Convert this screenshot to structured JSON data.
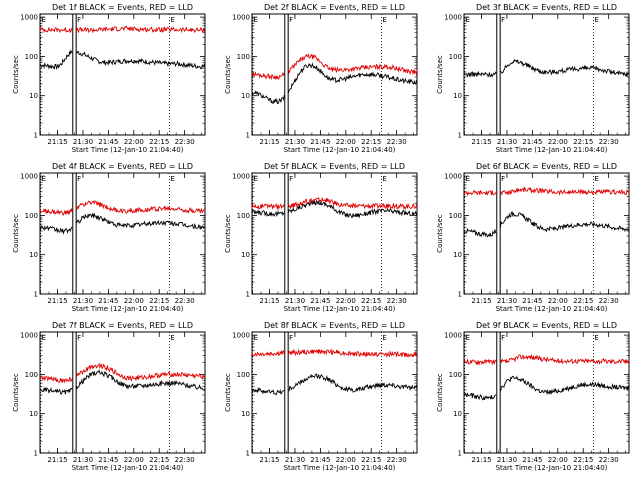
{
  "chart_data": [
    {
      "type": "line",
      "title": "Det 1f BLACK = Events, RED = LLD",
      "xlabel": "Start Time (12-Jan-10 21:04:40)",
      "ylabel": "Counts/sec",
      "xticks": [
        "21:15",
        "21:30",
        "21:45",
        "22:00",
        "22:15",
        "22:30"
      ],
      "yticks": [
        "1",
        "10",
        "100",
        "1000"
      ],
      "yscale": "log",
      "xlim": [
        "21:04:40",
        "22:42:00"
      ],
      "ylim": [
        1,
        1200
      ],
      "markers": [
        {
          "label": "E",
          "time": "21:05"
        },
        {
          "label": "F",
          "time": "21:26"
        },
        {
          "label": "E",
          "time": "22:21"
        }
      ],
      "events": [
        {
          "label": "S",
          "time": "21:24"
        },
        {
          "label": "E",
          "time": "21:26"
        }
      ],
      "series": [
        {
          "name": "BLACK = Events",
          "color": "#000000",
          "baseline": [
            [
              0,
              60
            ],
            [
              0.1,
              55
            ],
            [
              0.2,
              130
            ],
            [
              0.4,
              70
            ],
            [
              0.55,
              78
            ],
            [
              0.8,
              65
            ],
            [
              1,
              55
            ]
          ]
        },
        {
          "name": "RED = LLD",
          "color": "#e00000",
          "baseline": [
            [
              0,
              480
            ],
            [
              0.3,
              470
            ],
            [
              0.5,
              510
            ],
            [
              0.7,
              480
            ],
            [
              1,
              470
            ]
          ]
        }
      ]
    },
    {
      "type": "line",
      "title": "Det 2f BLACK = Events, RED = LLD",
      "xlabel": "Start Time (12-Jan-10 21:04:40)",
      "ylabel": "Counts/sec",
      "xticks": [
        "21:15",
        "21:30",
        "21:45",
        "22:00",
        "22:15",
        "22:30"
      ],
      "yticks": [
        "1",
        "10",
        "100",
        "1000"
      ],
      "yscale": "log",
      "xlim": [
        "21:04:40",
        "22:42:00"
      ],
      "ylim": [
        1,
        1200
      ],
      "markers": [
        {
          "label": "E",
          "time": "21:05"
        },
        {
          "label": "F",
          "time": "21:26"
        },
        {
          "label": "E",
          "time": "22:21"
        }
      ],
      "events": [
        {
          "label": "S",
          "time": "21:24"
        },
        {
          "label": "E",
          "time": "21:26"
        }
      ],
      "series": [
        {
          "name": "BLACK = Events",
          "color": "#000000",
          "baseline": [
            [
              0,
              12
            ],
            [
              0.15,
              7
            ],
            [
              0.35,
              60
            ],
            [
              0.5,
              25
            ],
            [
              0.7,
              35
            ],
            [
              1,
              22
            ]
          ]
        },
        {
          "name": "RED = LLD",
          "color": "#e00000",
          "baseline": [
            [
              0,
              35
            ],
            [
              0.15,
              30
            ],
            [
              0.35,
              100
            ],
            [
              0.5,
              45
            ],
            [
              0.8,
              55
            ],
            [
              1,
              40
            ]
          ]
        }
      ]
    },
    {
      "type": "line",
      "title": "Det 3f BLACK = Events, RED = LLD",
      "xlabel": "Start Time (12-Jan-10 21:04:40)",
      "ylabel": "Counts/sec",
      "xticks": [
        "21:15",
        "21:30",
        "21:45",
        "22:00",
        "22:15",
        "22:30"
      ],
      "yticks": [
        "1",
        "10",
        "100",
        "1000"
      ],
      "yscale": "log",
      "xlim": [
        "21:04:40",
        "22:42:00"
      ],
      "ylim": [
        1,
        1200
      ],
      "markers": [
        {
          "label": "E",
          "time": "21:05"
        },
        {
          "label": "F",
          "time": "21:26"
        },
        {
          "label": "E",
          "time": "22:21"
        }
      ],
      "events": [
        {
          "label": "S",
          "time": "21:24"
        },
        {
          "label": "E",
          "time": "21:26"
        }
      ],
      "series": [
        {
          "name": "BLACK = Events",
          "color": "#000000",
          "baseline": [
            [
              0,
              35
            ],
            [
              0.2,
              35
            ],
            [
              0.3,
              75
            ],
            [
              0.5,
              40
            ],
            [
              0.75,
              50
            ],
            [
              1,
              35
            ]
          ]
        }
      ]
    },
    {
      "type": "line",
      "title": "Det 4f BLACK = Events, RED = LLD",
      "xlabel": "Start Time (12-Jan-10 21:04:40)",
      "ylabel": "Counts/sec",
      "xticks": [
        "21:15",
        "21:30",
        "21:45",
        "22:00",
        "22:15",
        "22:30"
      ],
      "yticks": [
        "1",
        "10",
        "100",
        "1000"
      ],
      "yscale": "log",
      "xlim": [
        "21:04:40",
        "22:42:00"
      ],
      "ylim": [
        1,
        1200
      ],
      "markers": [
        {
          "label": "E",
          "time": "21:05"
        },
        {
          "label": "F",
          "time": "21:26"
        },
        {
          "label": "E",
          "time": "22:21"
        }
      ],
      "events": [
        {
          "label": "S",
          "time": "21:24"
        },
        {
          "label": "E",
          "time": "21:26"
        }
      ],
      "series": [
        {
          "name": "BLACK = Events",
          "color": "#000000",
          "baseline": [
            [
              0,
              50
            ],
            [
              0.15,
              40
            ],
            [
              0.3,
              100
            ],
            [
              0.5,
              55
            ],
            [
              0.75,
              65
            ],
            [
              1,
              50
            ]
          ]
        },
        {
          "name": "RED = LLD",
          "color": "#e00000",
          "baseline": [
            [
              0,
              130
            ],
            [
              0.15,
              115
            ],
            [
              0.3,
              210
            ],
            [
              0.5,
              130
            ],
            [
              0.75,
              150
            ],
            [
              1,
              130
            ]
          ]
        }
      ]
    },
    {
      "type": "line",
      "title": "Det 5f BLACK = Events, RED = LLD",
      "xlabel": "Start Time (12-Jan-10 21:04:40)",
      "ylabel": "Counts/sec",
      "xticks": [
        "21:15",
        "21:30",
        "21:45",
        "22:00",
        "22:15",
        "22:30"
      ],
      "yticks": [
        "1",
        "10",
        "100",
        "1000"
      ],
      "yscale": "log",
      "xlim": [
        "21:04:40",
        "22:42:00"
      ],
      "ylim": [
        1,
        1200
      ],
      "markers": [
        {
          "label": "E",
          "time": "21:05"
        },
        {
          "label": "F",
          "time": "21:26"
        },
        {
          "label": "E",
          "time": "22:21"
        }
      ],
      "events": [
        {
          "label": "S",
          "time": "21:24"
        },
        {
          "label": "E",
          "time": "21:26"
        }
      ],
      "series": [
        {
          "name": "BLACK = Events",
          "color": "#000000",
          "baseline": [
            [
              0,
              120
            ],
            [
              0.15,
              110
            ],
            [
              0.4,
              210
            ],
            [
              0.6,
              100
            ],
            [
              0.8,
              130
            ],
            [
              1,
              110
            ]
          ]
        },
        {
          "name": "RED = LLD",
          "color": "#e00000",
          "baseline": [
            [
              0,
              170
            ],
            [
              0.2,
              170
            ],
            [
              0.4,
              250
            ],
            [
              0.6,
              175
            ],
            [
              1,
              170
            ]
          ]
        }
      ]
    },
    {
      "type": "line",
      "title": "Det 6f BLACK = Events, RED = LLD",
      "xlabel": "Start Time (12-Jan-10 21:04:40)",
      "ylabel": "Counts/sec",
      "xticks": [
        "21:15",
        "21:30",
        "21:45",
        "22:00",
        "22:15",
        "22:30"
      ],
      "yticks": [
        "1",
        "10",
        "100",
        "1000"
      ],
      "yscale": "log",
      "xlim": [
        "21:04:40",
        "22:42:00"
      ],
      "ylim": [
        1,
        1200
      ],
      "markers": [
        {
          "label": "E",
          "time": "21:05"
        },
        {
          "label": "F",
          "time": "21:26"
        },
        {
          "label": "E",
          "time": "22:21"
        }
      ],
      "events": [
        {
          "label": "S",
          "time": "21:24"
        },
        {
          "label": "E",
          "time": "21:26"
        }
      ],
      "series": [
        {
          "name": "BLACK = Events",
          "color": "#000000",
          "baseline": [
            [
              0,
              40
            ],
            [
              0.15,
              32
            ],
            [
              0.3,
              110
            ],
            [
              0.5,
              45
            ],
            [
              0.75,
              60
            ],
            [
              1,
              45
            ]
          ]
        },
        {
          "name": "RED = LLD",
          "color": "#e00000",
          "baseline": [
            [
              0,
              380
            ],
            [
              0.25,
              380
            ],
            [
              0.35,
              450
            ],
            [
              0.6,
              390
            ],
            [
              1,
              390
            ]
          ]
        }
      ]
    },
    {
      "type": "line",
      "title": "Det 7f BLACK = Events, RED = LLD",
      "xlabel": "Start Time (12-Jan-10 21:04:40)",
      "ylabel": "Counts/sec",
      "xticks": [
        "21:15",
        "21:30",
        "21:45",
        "22:00",
        "22:15",
        "22:30"
      ],
      "yticks": [
        "1",
        "10",
        "100",
        "1000"
      ],
      "yscale": "log",
      "xlim": [
        "21:04:40",
        "22:42:00"
      ],
      "ylim": [
        1,
        1200
      ],
      "markers": [
        {
          "label": "E",
          "time": "21:05"
        },
        {
          "label": "F",
          "time": "21:26"
        },
        {
          "label": "E",
          "time": "22:21"
        }
      ],
      "events": [
        {
          "label": "S",
          "time": "21:24"
        },
        {
          "label": "E",
          "time": "21:26"
        }
      ],
      "series": [
        {
          "name": "BLACK = Events",
          "color": "#000000",
          "baseline": [
            [
              0,
              40
            ],
            [
              0.15,
              35
            ],
            [
              0.35,
              110
            ],
            [
              0.55,
              50
            ],
            [
              0.8,
              60
            ],
            [
              1,
              45
            ]
          ]
        },
        {
          "name": "RED = LLD",
          "color": "#e00000",
          "baseline": [
            [
              0,
              80
            ],
            [
              0.15,
              70
            ],
            [
              0.35,
              170
            ],
            [
              0.55,
              80
            ],
            [
              0.8,
              100
            ],
            [
              1,
              90
            ]
          ]
        }
      ]
    },
    {
      "type": "line",
      "title": "Det 8f BLACK = Events, RED = LLD",
      "xlabel": "Start Time (12-Jan-10 21:04:40)",
      "ylabel": "Counts/sec",
      "xticks": [
        "21:15",
        "21:30",
        "21:45",
        "22:00",
        "22:15",
        "22:30"
      ],
      "yticks": [
        "1",
        "10",
        "100",
        "1000"
      ],
      "yscale": "log",
      "xlim": [
        "21:04:40",
        "22:42:00"
      ],
      "ylim": [
        1,
        1200
      ],
      "markers": [
        {
          "label": "E",
          "time": "21:05"
        },
        {
          "label": "F",
          "time": "21:26"
        },
        {
          "label": "E",
          "time": "22:21"
        }
      ],
      "events": [
        {
          "label": "S",
          "time": "21:24"
        },
        {
          "label": "E",
          "time": "21:26"
        }
      ],
      "series": [
        {
          "name": "BLACK = Events",
          "color": "#000000",
          "baseline": [
            [
              0,
              40
            ],
            [
              0.15,
              35
            ],
            [
              0.4,
              90
            ],
            [
              0.6,
              40
            ],
            [
              0.8,
              55
            ],
            [
              1,
              45
            ]
          ]
        },
        {
          "name": "RED = LLD",
          "color": "#e00000",
          "baseline": [
            [
              0,
              330
            ],
            [
              0.4,
              380
            ],
            [
              0.7,
              330
            ],
            [
              1,
              320
            ]
          ]
        }
      ]
    },
    {
      "type": "line",
      "title": "Det 9f BLACK = Events, RED = LLD",
      "xlabel": "Start Time (12-Jan-10 21:04:40)",
      "ylabel": "Counts/sec",
      "xticks": [
        "21:15",
        "21:30",
        "21:45",
        "22:00",
        "22:15",
        "22:30"
      ],
      "yticks": [
        "1",
        "10",
        "100",
        "1000"
      ],
      "yscale": "log",
      "xlim": [
        "21:04:40",
        "22:42:00"
      ],
      "ylim": [
        1,
        1200
      ],
      "markers": [
        {
          "label": "E",
          "time": "21:05"
        },
        {
          "label": "F",
          "time": "21:26"
        },
        {
          "label": "E",
          "time": "22:21"
        }
      ],
      "events": [
        {
          "label": "S",
          "time": "21:24"
        },
        {
          "label": "E",
          "time": "21:26"
        }
      ],
      "series": [
        {
          "name": "BLACK = Events",
          "color": "#000000",
          "baseline": [
            [
              0,
              30
            ],
            [
              0.15,
              25
            ],
            [
              0.3,
              80
            ],
            [
              0.5,
              35
            ],
            [
              0.75,
              55
            ],
            [
              1,
              45
            ]
          ]
        },
        {
          "name": "RED = LLD",
          "color": "#e00000",
          "baseline": [
            [
              0,
              210
            ],
            [
              0.25,
              210
            ],
            [
              0.35,
              280
            ],
            [
              0.6,
              220
            ],
            [
              1,
              215
            ]
          ]
        }
      ]
    }
  ]
}
